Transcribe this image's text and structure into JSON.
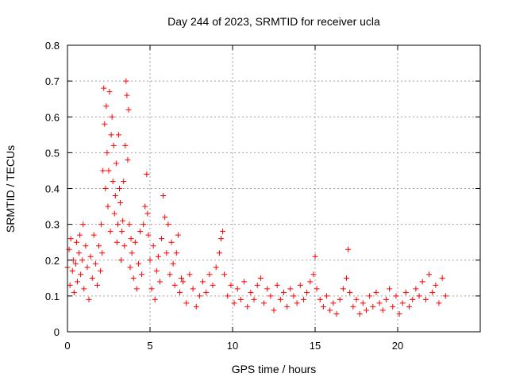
{
  "chart_data": {
    "type": "scatter",
    "title": "Day 244 of 2023, SRMTID for receiver ucla",
    "xlabel": "GPS time / hours",
    "ylabel": "SRMTID / TECUs",
    "xlim": [
      0,
      25
    ],
    "ylim": [
      0,
      0.8
    ],
    "xticks": [
      0,
      5,
      10,
      15,
      20
    ],
    "yticks": [
      0,
      0.1,
      0.2,
      0.3,
      0.4,
      0.5,
      0.6,
      0.7,
      0.8
    ],
    "xtick_labels": [
      "0",
      "5",
      "10",
      "15",
      "20"
    ],
    "ytick_labels": [
      "0",
      "0.1",
      "0.2",
      "0.3",
      "0.4",
      "0.5",
      "0.6",
      "0.7",
      "0.8"
    ],
    "grid": true,
    "marker": "+",
    "color": "#ff0000",
    "series": [
      {
        "name": "SRMTID",
        "points": [
          [
            0.0,
            0.18
          ],
          [
            0.1,
            0.23
          ],
          [
            0.15,
            0.13
          ],
          [
            0.2,
            0.26
          ],
          [
            0.3,
            0.17
          ],
          [
            0.35,
            0.2
          ],
          [
            0.4,
            0.11
          ],
          [
            0.5,
            0.19
          ],
          [
            0.55,
            0.25
          ],
          [
            0.6,
            0.14
          ],
          [
            0.7,
            0.22
          ],
          [
            0.75,
            0.27
          ],
          [
            0.8,
            0.16
          ],
          [
            0.9,
            0.2
          ],
          [
            0.95,
            0.3
          ],
          [
            1.0,
            0.12
          ],
          [
            1.1,
            0.24
          ],
          [
            1.2,
            0.18
          ],
          [
            1.3,
            0.09
          ],
          [
            1.4,
            0.21
          ],
          [
            1.5,
            0.15
          ],
          [
            1.6,
            0.27
          ],
          [
            1.7,
            0.19
          ],
          [
            1.8,
            0.13
          ],
          [
            1.9,
            0.24
          ],
          [
            2.0,
            0.17
          ],
          [
            2.05,
            0.3
          ],
          [
            2.1,
            0.22
          ],
          [
            2.15,
            0.45
          ],
          [
            2.2,
            0.68
          ],
          [
            2.25,
            0.58
          ],
          [
            2.3,
            0.4
          ],
          [
            2.35,
            0.63
          ],
          [
            2.4,
            0.5
          ],
          [
            2.45,
            0.35
          ],
          [
            2.5,
            0.45
          ],
          [
            2.55,
            0.67
          ],
          [
            2.6,
            0.28
          ],
          [
            2.65,
            0.55
          ],
          [
            2.7,
            0.6
          ],
          [
            2.75,
            0.42
          ],
          [
            2.8,
            0.52
          ],
          [
            2.85,
            0.33
          ],
          [
            2.9,
            0.38
          ],
          [
            2.95,
            0.47
          ],
          [
            3.0,
            0.25
          ],
          [
            3.05,
            0.3
          ],
          [
            3.1,
            0.55
          ],
          [
            3.15,
            0.4
          ],
          [
            3.2,
            0.36
          ],
          [
            3.25,
            0.2
          ],
          [
            3.3,
            0.28
          ],
          [
            3.35,
            0.31
          ],
          [
            3.4,
            0.42
          ],
          [
            3.45,
            0.24
          ],
          [
            3.5,
            0.52
          ],
          [
            3.55,
            0.7
          ],
          [
            3.6,
            0.66
          ],
          [
            3.65,
            0.48
          ],
          [
            3.7,
            0.62
          ],
          [
            3.75,
            0.3
          ],
          [
            3.8,
            0.18
          ],
          [
            3.85,
            0.26
          ],
          [
            3.9,
            0.22
          ],
          [
            4.0,
            0.15
          ],
          [
            4.1,
            0.25
          ],
          [
            4.2,
            0.12
          ],
          [
            4.3,
            0.19
          ],
          [
            4.4,
            0.28
          ],
          [
            4.5,
            0.16
          ],
          [
            4.6,
            0.3
          ],
          [
            4.7,
            0.35
          ],
          [
            4.8,
            0.44
          ],
          [
            4.85,
            0.33
          ],
          [
            4.9,
            0.27
          ],
          [
            5.0,
            0.2
          ],
          [
            5.1,
            0.12
          ],
          [
            5.2,
            0.24
          ],
          [
            5.3,
            0.09
          ],
          [
            5.4,
            0.17
          ],
          [
            5.5,
            0.21
          ],
          [
            5.6,
            0.14
          ],
          [
            5.7,
            0.26
          ],
          [
            5.8,
            0.38
          ],
          [
            5.9,
            0.32
          ],
          [
            6.0,
            0.22
          ],
          [
            6.1,
            0.3
          ],
          [
            6.2,
            0.16
          ],
          [
            6.3,
            0.25
          ],
          [
            6.4,
            0.19
          ],
          [
            6.5,
            0.13
          ],
          [
            6.6,
            0.22
          ],
          [
            6.7,
            0.27
          ],
          [
            6.8,
            0.11
          ],
          [
            6.9,
            0.15
          ],
          [
            7.0,
            0.14
          ],
          [
            7.2,
            0.08
          ],
          [
            7.4,
            0.16
          ],
          [
            7.6,
            0.12
          ],
          [
            7.8,
            0.07
          ],
          [
            8.0,
            0.1
          ],
          [
            8.2,
            0.14
          ],
          [
            8.4,
            0.11
          ],
          [
            8.6,
            0.16
          ],
          [
            8.8,
            0.13
          ],
          [
            9.0,
            0.18
          ],
          [
            9.2,
            0.22
          ],
          [
            9.3,
            0.26
          ],
          [
            9.4,
            0.28
          ],
          [
            9.5,
            0.16
          ],
          [
            9.7,
            0.1
          ],
          [
            9.9,
            0.13
          ],
          [
            10.1,
            0.08
          ],
          [
            10.3,
            0.12
          ],
          [
            10.5,
            0.09
          ],
          [
            10.7,
            0.14
          ],
          [
            10.9,
            0.07
          ],
          [
            11.1,
            0.11
          ],
          [
            11.3,
            0.09
          ],
          [
            11.5,
            0.13
          ],
          [
            11.7,
            0.15
          ],
          [
            11.9,
            0.08
          ],
          [
            12.1,
            0.12
          ],
          [
            12.3,
            0.1
          ],
          [
            12.5,
            0.06
          ],
          [
            12.7,
            0.13
          ],
          [
            12.9,
            0.09
          ],
          [
            13.1,
            0.11
          ],
          [
            13.3,
            0.07
          ],
          [
            13.5,
            0.12
          ],
          [
            13.7,
            0.1
          ],
          [
            13.9,
            0.08
          ],
          [
            14.1,
            0.13
          ],
          [
            14.3,
            0.09
          ],
          [
            14.5,
            0.11
          ],
          [
            14.7,
            0.14
          ],
          [
            14.9,
            0.16
          ],
          [
            15.0,
            0.21
          ],
          [
            15.1,
            0.12
          ],
          [
            15.3,
            0.09
          ],
          [
            15.5,
            0.07
          ],
          [
            15.7,
            0.1
          ],
          [
            15.9,
            0.06
          ],
          [
            16.1,
            0.08
          ],
          [
            16.3,
            0.05
          ],
          [
            16.5,
            0.09
          ],
          [
            16.7,
            0.12
          ],
          [
            16.9,
            0.15
          ],
          [
            17.0,
            0.23
          ],
          [
            17.1,
            0.11
          ],
          [
            17.3,
            0.07
          ],
          [
            17.5,
            0.09
          ],
          [
            17.7,
            0.05
          ],
          [
            17.9,
            0.08
          ],
          [
            18.1,
            0.06
          ],
          [
            18.3,
            0.1
          ],
          [
            18.5,
            0.07
          ],
          [
            18.7,
            0.11
          ],
          [
            18.9,
            0.08
          ],
          [
            19.1,
            0.06
          ],
          [
            19.3,
            0.09
          ],
          [
            19.5,
            0.12
          ],
          [
            19.7,
            0.07
          ],
          [
            19.9,
            0.1
          ],
          [
            20.1,
            0.05
          ],
          [
            20.3,
            0.08
          ],
          [
            20.5,
            0.11
          ],
          [
            20.7,
            0.07
          ],
          [
            20.9,
            0.09
          ],
          [
            21.1,
            0.12
          ],
          [
            21.3,
            0.1
          ],
          [
            21.5,
            0.14
          ],
          [
            21.7,
            0.09
          ],
          [
            21.9,
            0.16
          ],
          [
            22.1,
            0.11
          ],
          [
            22.3,
            0.13
          ],
          [
            22.5,
            0.08
          ],
          [
            22.7,
            0.15
          ],
          [
            22.9,
            0.1
          ]
        ]
      }
    ]
  }
}
